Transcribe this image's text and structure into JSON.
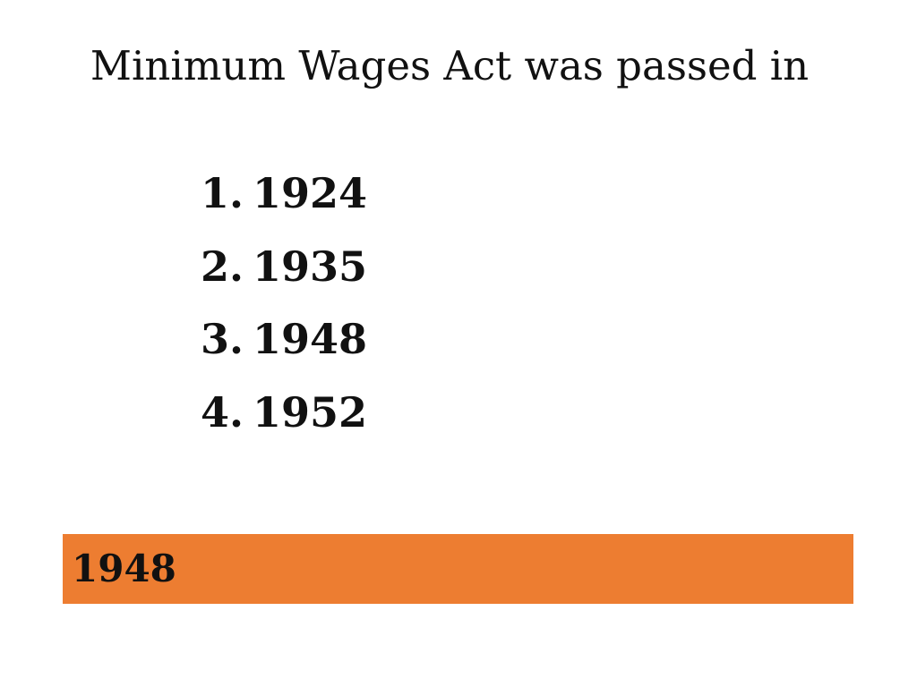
{
  "title": "Minimum Wages Act was passed in",
  "options": [
    {
      "number": "1.",
      "text": "1924"
    },
    {
      "number": "2.",
      "text": "1935"
    },
    {
      "number": "3.",
      "text": "1948"
    },
    {
      "number": "4.",
      "text": "1952"
    }
  ],
  "answer": "1948"
}
